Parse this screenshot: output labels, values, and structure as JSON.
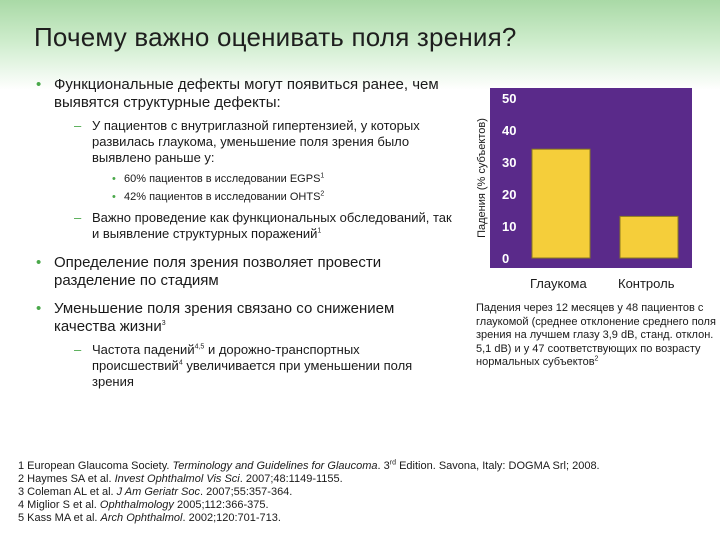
{
  "title": "Почему важно оценивать поля зрения?",
  "bullets": {
    "b1": "Функциональные дефекты могут появиться ранее, чем выявятся структурные дефекты:",
    "b1_sub1": "У пациентов с внутриглазной гипертензией, у которых развилась глаукома, уменьшение поля зрения было выявлено раньше  у:",
    "b1_sub1_a": "60% пациентов в исследовании EGPS",
    "b1_sub1_a_sup": "1",
    "b1_sub1_b": "42% пациентов в исследовании OHTS",
    "b1_sub1_b_sup": "2",
    "b1_sub2": "Важно проведение как функциональных обследований, так и выявление структурных поражений",
    "b1_sub2_sup": "1",
    "b2": "Определение поля зрения позволяет провести разделение по стадиям",
    "b3": "Уменьшение поля зрения связано со снижением качества жизни",
    "b3_sup": "3",
    "b3_sub1_pre": "Частота падений",
    "b3_sub1_sup1": "4,5",
    "b3_sub1_mid": " и дорожно-транспортных происшествий",
    "b3_sub1_sup2": "4",
    "b3_sub1_post": " увеличивается при уменьшении поля зрения"
  },
  "chart_data": {
    "type": "bar",
    "categories": [
      "Глаукома",
      "Контроль"
    ],
    "values": [
      34,
      13
    ],
    "ylabel": "Падения (% субъектов)",
    "ylim": [
      0,
      50
    ],
    "yticks": [
      0,
      10,
      20,
      30,
      40,
      50
    ],
    "tick_labels": [
      "0",
      "10",
      "20",
      "30",
      "40",
      "50"
    ],
    "grid": false,
    "colors": {
      "background": "#5a2a8a",
      "bar": "#f5ce3a",
      "bar_stroke": "#8a7a20",
      "tick_text": "#ffffff"
    }
  },
  "caption": {
    "text": "Падения через 12 месяцев у 48 пациентов с глаукомой (среднее отклонение среднего поля зрения на лучшем глазу 3,9 dB, станд. отклон. 5,1 dB) и у 47 соответствующих по возрасту нормальных субъектов",
    "sup": "2"
  },
  "references": [
    {
      "pre": "1 European Glaucoma Society. ",
      "it": "Terminology and Guidelines for Glaucoma",
      "post": ". 3",
      "sup": "rd",
      "post2": " Edition. Savona, Italy: DOGMA Srl; 2008."
    },
    {
      "pre": "2 Haymes SA et al. ",
      "it": "Invest Ophthalmol Vis Sci",
      "post": ". 2007;48:1149-1155."
    },
    {
      "pre": "3 Coleman AL et al. ",
      "it": "J Am Geriatr Soc",
      "post": ". 2007;55:357-364."
    },
    {
      "pre": "4 Miglior S et al. ",
      "it": "Ophthalmology",
      "post": " 2005;112:366-375."
    },
    {
      "pre": "5 Kass MA et al. ",
      "it": "Arch Ophthalmol",
      "post": ". 2002;120:701-713."
    }
  ],
  "colors": {
    "accent": "#4aa84a",
    "header_band": "#a9d9a6"
  }
}
